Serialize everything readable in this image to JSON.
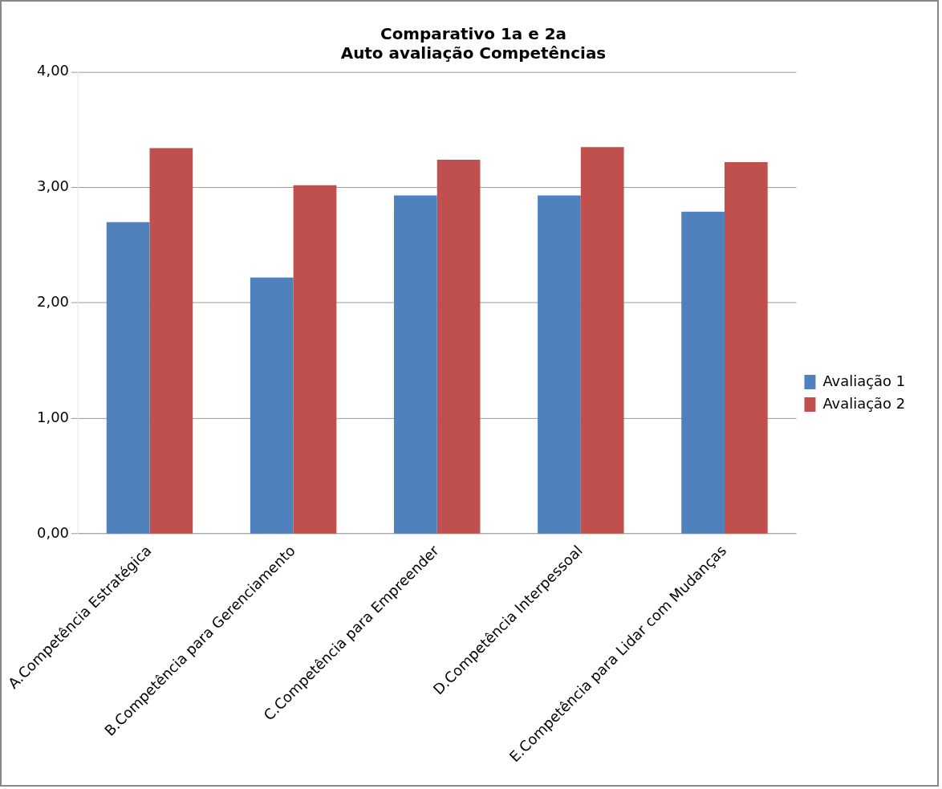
{
  "chart_data": {
    "type": "bar",
    "title": [
      "Comparativo 1a e 2a",
      "Auto avaliação Competências"
    ],
    "categories": [
      "A.Competência Estratégica",
      "B.Competência para Gerenciamento",
      "C.Competência para Empreender",
      "D.Competência Interpessoal",
      "E.Competência para Lidar com Mudanças"
    ],
    "series": [
      {
        "name": "Avaliação 1",
        "color": "#4f81bd",
        "values": [
          2.7,
          2.22,
          2.93,
          2.93,
          2.79
        ]
      },
      {
        "name": "Avaliação 2",
        "color": "#c0504d",
        "values": [
          3.34,
          3.02,
          3.24,
          3.35,
          3.22
        ]
      }
    ],
    "ylim": [
      0,
      4
    ],
    "yticks": [
      {
        "value": 0,
        "label": "0,00"
      },
      {
        "value": 1,
        "label": "1,00"
      },
      {
        "value": 2,
        "label": "2,00"
      },
      {
        "value": 3,
        "label": "3,00"
      },
      {
        "value": 4,
        "label": "4,00"
      }
    ],
    "grid": "y",
    "legend": "right"
  }
}
